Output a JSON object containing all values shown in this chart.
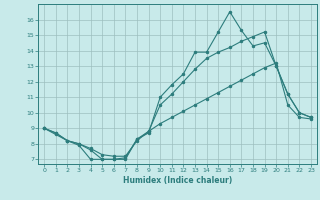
{
  "xlabel": "Humidex (Indice chaleur)",
  "x": [
    0,
    1,
    2,
    3,
    4,
    5,
    6,
    7,
    8,
    9,
    10,
    11,
    12,
    13,
    14,
    15,
    16,
    17,
    18,
    19,
    20,
    21,
    22,
    23
  ],
  "line1": [
    9.0,
    8.6,
    8.2,
    7.9,
    7.0,
    7.0,
    7.0,
    7.0,
    8.3,
    8.7,
    11.0,
    11.8,
    12.5,
    13.9,
    13.9,
    15.2,
    16.5,
    15.3,
    14.3,
    14.5,
    13.0,
    11.2,
    10.0,
    9.7
  ],
  "line2": [
    9.0,
    8.7,
    8.2,
    8.0,
    7.6,
    7.0,
    7.0,
    7.1,
    8.3,
    8.8,
    10.5,
    11.2,
    12.0,
    12.8,
    13.5,
    13.9,
    14.2,
    14.6,
    14.9,
    15.2,
    13.0,
    11.2,
    10.0,
    9.7
  ],
  "line3": [
    9.0,
    8.7,
    8.2,
    8.0,
    7.7,
    7.3,
    7.2,
    7.2,
    8.2,
    8.8,
    9.3,
    9.7,
    10.1,
    10.5,
    10.9,
    11.3,
    11.7,
    12.1,
    12.5,
    12.9,
    13.2,
    10.5,
    9.7,
    9.6
  ],
  "line_color": "#2d7d7d",
  "bg_color": "#c8eaea",
  "grid_color": "#9dbfbf",
  "xlim": [
    -0.5,
    23.5
  ],
  "ylim": [
    6.7,
    17.0
  ],
  "yticks": [
    7,
    8,
    9,
    10,
    11,
    12,
    13,
    14,
    15,
    16
  ],
  "xticks": [
    0,
    1,
    2,
    3,
    4,
    5,
    6,
    7,
    8,
    9,
    10,
    11,
    12,
    13,
    14,
    15,
    16,
    17,
    18,
    19,
    20,
    21,
    22,
    23
  ]
}
